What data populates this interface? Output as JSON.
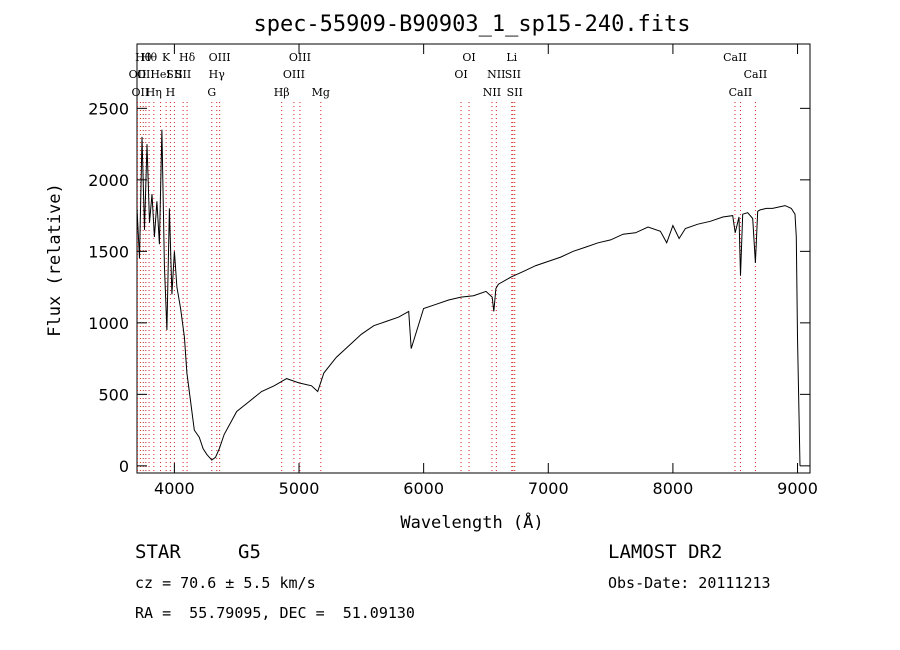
{
  "chart_data": {
    "type": "line",
    "title": "spec-55909-B90903_1_sp15-240.fits",
    "xlabel": "Wavelength (Å)",
    "ylabel": "Flux (relative)",
    "xlim": [
      3700,
      9100
    ],
    "ylim": [
      -50,
      2950
    ],
    "xticks": [
      4000,
      5000,
      6000,
      7000,
      8000,
      9000
    ],
    "yticks": [
      0,
      500,
      1000,
      1500,
      2000,
      2500
    ],
    "grid": false,
    "series": [
      {
        "x": [
          3700,
          3720,
          3740,
          3760,
          3780,
          3800,
          3820,
          3840,
          3860,
          3880,
          3900,
          3920,
          3940,
          3960,
          3980,
          4000,
          4020,
          4050,
          4080,
          4100,
          4130,
          4160,
          4200,
          4230,
          4260,
          4300,
          4330,
          4360,
          4400,
          4450,
          4500,
          4600,
          4700,
          4800,
          4900,
          5000,
          5100,
          5150,
          5200,
          5300,
          5400,
          5500,
          5600,
          5700,
          5800,
          5880,
          5900,
          6000,
          6100,
          6200,
          6300,
          6400,
          6500,
          6550,
          6563,
          6580,
          6600,
          6700,
          6800,
          6900,
          7000,
          7100,
          7200,
          7300,
          7400,
          7500,
          7600,
          7700,
          7800,
          7900,
          7950,
          8000,
          8050,
          8100,
          8200,
          8300,
          8400,
          8480,
          8500,
          8530,
          8542,
          8560,
          8600,
          8640,
          8662,
          8680,
          8700,
          8750,
          8800,
          8850,
          8900,
          8950,
          8980,
          8990,
          9000,
          9020
        ],
        "y": [
          1800,
          1450,
          2300,
          1650,
          2250,
          1700,
          1900,
          1600,
          1850,
          1550,
          2350,
          1400,
          950,
          1800,
          1200,
          1500,
          1250,
          1100,
          900,
          650,
          450,
          250,
          200,
          120,
          80,
          40,
          60,
          120,
          220,
          300,
          380,
          450,
          520,
          560,
          610,
          580,
          560,
          520,
          650,
          760,
          840,
          920,
          980,
          1010,
          1040,
          1080,
          820,
          1100,
          1130,
          1160,
          1180,
          1190,
          1220,
          1180,
          1080,
          1240,
          1270,
          1320,
          1360,
          1400,
          1430,
          1460,
          1500,
          1530,
          1560,
          1580,
          1620,
          1630,
          1670,
          1640,
          1560,
          1680,
          1590,
          1660,
          1690,
          1710,
          1740,
          1750,
          1630,
          1740,
          1330,
          1760,
          1770,
          1730,
          1420,
          1780,
          1790,
          1800,
          1800,
          1810,
          1820,
          1800,
          1760,
          1600,
          900,
          0
        ]
      }
    ],
    "lines": [
      {
        "wl": 3704,
        "row": 1,
        "label": "OII"
      },
      {
        "wl": 3727,
        "row": 2,
        "label": "OII"
      },
      {
        "wl": 3750,
        "row": 0,
        "label": "Hθ"
      },
      {
        "wl": 3771,
        "row": 1,
        "label": "OII"
      },
      {
        "wl": 3797,
        "row": 0,
        "label": "Hθ"
      },
      {
        "wl": 3835,
        "row": 2,
        "label": "Hη"
      },
      {
        "wl": 3889,
        "row": 1,
        "label": "HeI"
      },
      {
        "wl": 3934,
        "row": 0,
        "label": "K"
      },
      {
        "wl": 3968,
        "row": 2,
        "label": "H"
      },
      {
        "wl": 4000,
        "row": 1,
        "label": "SII"
      },
      {
        "wl": 4070,
        "row": 1,
        "label": "SII"
      },
      {
        "wl": 4102,
        "row": 0,
        "label": "Hδ"
      },
      {
        "wl": 4300,
        "row": 2,
        "label": "G"
      },
      {
        "wl": 4340,
        "row": 1,
        "label": "Hγ"
      },
      {
        "wl": 4363,
        "row": 0,
        "label": "OIII"
      },
      {
        "wl": 4861,
        "row": 2,
        "label": "Hβ"
      },
      {
        "wl": 4959,
        "row": 1,
        "label": "OIII"
      },
      {
        "wl": 5007,
        "row": 0,
        "label": "OIII"
      },
      {
        "wl": 5175,
        "row": 2,
        "label": "Mg"
      },
      {
        "wl": 6300,
        "row": 1,
        "label": "OI"
      },
      {
        "wl": 6364,
        "row": 0,
        "label": "OI"
      },
      {
        "wl": 6548,
        "row": 2,
        "label": "NII"
      },
      {
        "wl": 6583,
        "row": 1,
        "label": "NII"
      },
      {
        "wl": 6707,
        "row": 0,
        "label": "Li"
      },
      {
        "wl": 6716,
        "row": 1,
        "label": "SII"
      },
      {
        "wl": 6731,
        "row": 2,
        "label": "SII"
      },
      {
        "wl": 8498,
        "row": 0,
        "label": "CaII"
      },
      {
        "wl": 8542,
        "row": 2,
        "label": "CaII"
      },
      {
        "wl": 8662,
        "row": 1,
        "label": "CaII"
      }
    ]
  },
  "info": {
    "object_type": "STAR",
    "subclass": "G5",
    "survey": "LAMOST DR2",
    "redshift_text": "cz = 70.6 ± 5.5 km/s",
    "obs_date_text": "Obs-Date: 20111213",
    "coords_text": "RA =  55.79095, DEC =  51.09130"
  }
}
